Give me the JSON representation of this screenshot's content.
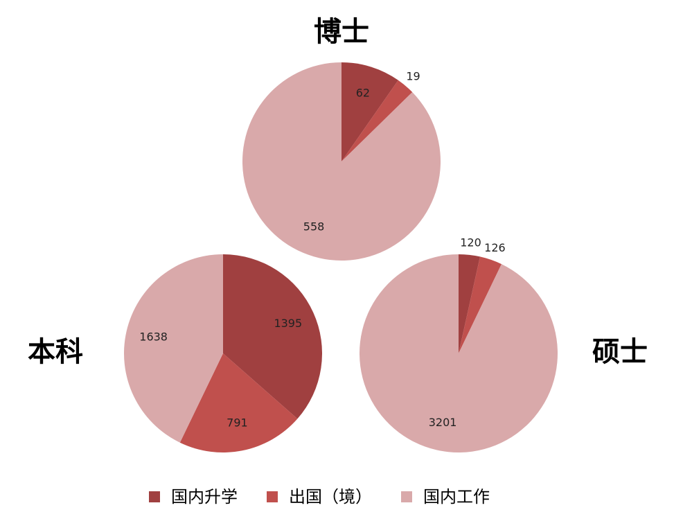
{
  "chart_data": [
    {
      "type": "pie",
      "title": "博士",
      "values": [
        62,
        19,
        558
      ]
    },
    {
      "type": "pie",
      "title": "本科",
      "values": [
        1395,
        791,
        1638
      ]
    },
    {
      "type": "pie",
      "title": "硕士",
      "values": [
        120,
        126,
        3201
      ]
    }
  ],
  "legend": {
    "categories": [
      "国内升学",
      "出国（境）",
      "国内工作"
    ],
    "colors": [
      "#a04040",
      "#c0504d",
      "#d9a9aa"
    ]
  }
}
